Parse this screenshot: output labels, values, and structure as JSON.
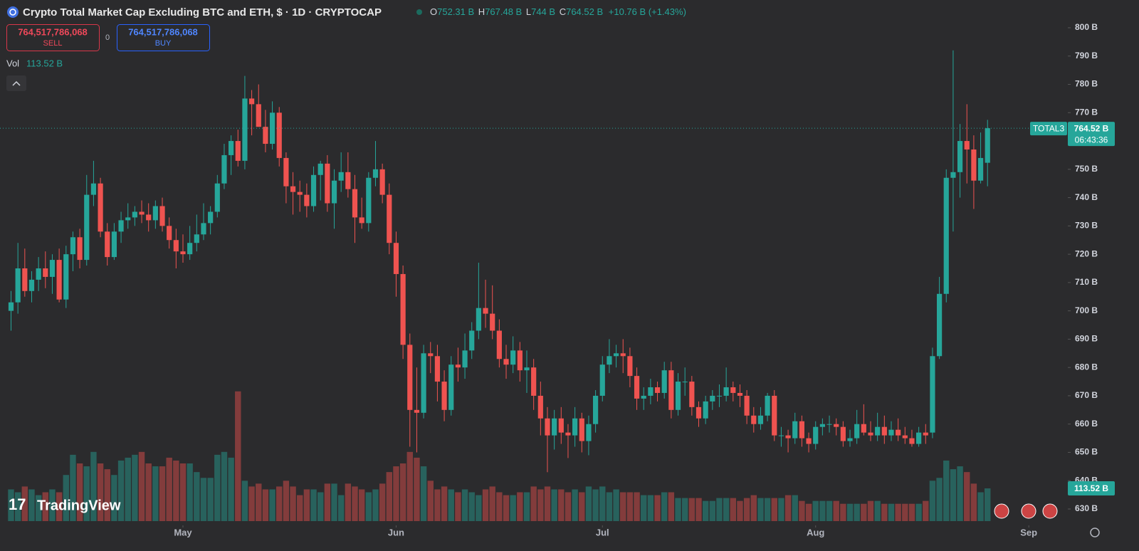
{
  "chart_data": {
    "type": "candlestick",
    "title": "Crypto Total Market Cap Excluding BTC and ETH, $ · 1D · CRYPTOCAP",
    "legend": {
      "open_key": "O",
      "open": "752.31 B",
      "high_key": "H",
      "high": "767.48 B",
      "low_key": "L",
      "low": "744 B",
      "close_key": "C",
      "close": "764.52 B",
      "change": "+10.76 B (+1.43%)"
    },
    "sell": {
      "price": "764,517,786,068",
      "label": "SELL"
    },
    "spread": "0",
    "buy": {
      "price": "764,517,786,068",
      "label": "BUY"
    },
    "volume_key": "Vol",
    "volume_label": "113.52 B",
    "symbol": "TOTAL3",
    "last_price_label": "764.52 B",
    "countdown": "06:43:36",
    "brand": "TradingView",
    "up_color": "#26a69a",
    "down_color": "#ef5350",
    "ylim": [
      630,
      800
    ],
    "yticks": [
      {
        "value": 630,
        "label": "630 B"
      },
      {
        "value": 640,
        "label": "640 B"
      },
      {
        "value": 650,
        "label": "650 B"
      },
      {
        "value": 660,
        "label": "660 B"
      },
      {
        "value": 670,
        "label": "670 B"
      },
      {
        "value": 680,
        "label": "680 B"
      },
      {
        "value": 690,
        "label": "690 B"
      },
      {
        "value": 700,
        "label": "700 B"
      },
      {
        "value": 710,
        "label": "710 B"
      },
      {
        "value": 720,
        "label": "720 B"
      },
      {
        "value": 730,
        "label": "730 B"
      },
      {
        "value": 740,
        "label": "740 B"
      },
      {
        "value": 750,
        "label": "750 B"
      },
      {
        "value": 760,
        "label": "760 B"
      },
      {
        "value": 770,
        "label": "770 B"
      },
      {
        "value": 780,
        "label": "780 B"
      },
      {
        "value": 790,
        "label": "790 B"
      },
      {
        "value": 800,
        "label": "800 B"
      }
    ],
    "xticks": [
      {
        "value": 25,
        "label": "May"
      },
      {
        "value": 56,
        "label": "Jun"
      },
      {
        "value": 86,
        "label": "Jul"
      },
      {
        "value": 117,
        "label": "Aug"
      },
      {
        "value": 148,
        "label": "Sep"
      }
    ],
    "candles": [
      [
        700,
        707,
        693,
        703
      ],
      [
        703,
        724,
        699,
        715
      ],
      [
        715,
        722,
        705,
        707
      ],
      [
        707,
        714,
        703,
        711
      ],
      [
        711,
        719,
        707,
        715
      ],
      [
        715,
        721,
        708,
        712
      ],
      [
        712,
        720,
        706,
        718
      ],
      [
        718,
        722,
        703,
        704
      ],
      [
        704,
        723,
        701,
        720
      ],
      [
        720,
        728,
        714,
        726
      ],
      [
        726,
        729,
        715,
        718
      ],
      [
        718,
        748,
        716,
        741
      ],
      [
        741,
        753,
        737,
        745
      ],
      [
        745,
        747,
        726,
        728
      ],
      [
        728,
        731,
        716,
        719
      ],
      [
        719,
        731,
        718,
        728
      ],
      [
        728,
        735,
        724,
        732
      ],
      [
        732,
        738,
        729,
        733
      ],
      [
        733,
        737,
        730,
        735
      ],
      [
        735,
        739,
        731,
        734
      ],
      [
        734,
        738,
        728,
        732
      ],
      [
        732,
        739,
        729,
        737
      ],
      [
        737,
        740,
        728,
        730
      ],
      [
        730,
        733,
        722,
        725
      ],
      [
        725,
        729,
        715,
        721
      ],
      [
        721,
        727,
        717,
        720
      ],
      [
        720,
        730,
        718,
        724
      ],
      [
        724,
        734,
        721,
        727
      ],
      [
        727,
        738,
        725,
        731
      ],
      [
        731,
        737,
        727,
        735
      ],
      [
        735,
        748,
        733,
        745
      ],
      [
        745,
        759,
        743,
        755
      ],
      [
        755,
        762,
        748,
        760
      ],
      [
        760,
        764,
        751,
        753
      ],
      [
        753,
        783,
        750,
        775
      ],
      [
        775,
        778,
        762,
        773
      ],
      [
        773,
        780,
        765,
        765
      ],
      [
        765,
        771,
        756,
        759
      ],
      [
        759,
        774,
        757,
        770
      ],
      [
        770,
        772,
        751,
        754
      ],
      [
        754,
        756,
        738,
        744
      ],
      [
        744,
        749,
        734,
        742
      ],
      [
        742,
        746,
        735,
        741
      ],
      [
        741,
        745,
        733,
        737
      ],
      [
        737,
        751,
        735,
        748
      ],
      [
        748,
        753,
        739,
        752
      ],
      [
        752,
        755,
        735,
        738
      ],
      [
        738,
        750,
        729,
        746
      ],
      [
        746,
        756,
        742,
        749
      ],
      [
        749,
        756,
        740,
        743
      ],
      [
        743,
        748,
        724,
        733
      ],
      [
        733,
        740,
        729,
        731
      ],
      [
        731,
        749,
        728,
        747
      ],
      [
        747,
        760,
        744,
        750
      ],
      [
        750,
        752,
        738,
        741
      ],
      [
        741,
        745,
        720,
        724
      ],
      [
        724,
        728,
        705,
        713
      ],
      [
        713,
        716,
        683,
        688
      ],
      [
        688,
        692,
        652,
        665
      ],
      [
        665,
        680,
        650,
        664
      ],
      [
        664,
        688,
        662,
        685
      ],
      [
        685,
        689,
        678,
        684
      ],
      [
        684,
        688,
        668,
        675
      ],
      [
        675,
        679,
        661,
        665
      ],
      [
        665,
        684,
        663,
        681
      ],
      [
        681,
        687,
        675,
        680
      ],
      [
        680,
        692,
        676,
        686
      ],
      [
        686,
        696,
        683,
        693
      ],
      [
        693,
        717,
        690,
        701
      ],
      [
        701,
        711,
        694,
        699
      ],
      [
        699,
        709,
        690,
        693
      ],
      [
        693,
        697,
        680,
        683
      ],
      [
        683,
        688,
        676,
        681
      ],
      [
        681,
        691,
        678,
        686
      ],
      [
        686,
        689,
        675,
        679
      ],
      [
        679,
        686,
        671,
        680
      ],
      [
        680,
        683,
        665,
        670
      ],
      [
        670,
        675,
        656,
        662
      ],
      [
        662,
        666,
        643,
        656
      ],
      [
        656,
        665,
        651,
        662
      ],
      [
        662,
        666,
        653,
        657
      ],
      [
        657,
        660,
        648,
        656
      ],
      [
        656,
        666,
        652,
        662
      ],
      [
        662,
        664,
        650,
        654
      ],
      [
        654,
        663,
        649,
        660
      ],
      [
        660,
        672,
        657,
        670
      ],
      [
        670,
        684,
        668,
        681
      ],
      [
        681,
        690,
        678,
        684
      ],
      [
        684,
        688,
        680,
        685
      ],
      [
        685,
        690,
        678,
        684
      ],
      [
        684,
        687,
        673,
        677
      ],
      [
        677,
        680,
        665,
        669
      ],
      [
        669,
        673,
        665,
        670
      ],
      [
        670,
        676,
        667,
        673
      ],
      [
        673,
        675,
        668,
        671
      ],
      [
        671,
        682,
        669,
        679
      ],
      [
        679,
        682,
        662,
        665
      ],
      [
        665,
        678,
        663,
        675
      ],
      [
        675,
        680,
        670,
        675
      ],
      [
        675,
        677,
        663,
        666
      ],
      [
        666,
        668,
        659,
        662
      ],
      [
        662,
        670,
        660,
        668
      ],
      [
        668,
        672,
        665,
        670
      ],
      [
        670,
        674,
        666,
        670
      ],
      [
        670,
        680,
        668,
        673
      ],
      [
        673,
        675,
        668,
        671
      ],
      [
        671,
        674,
        666,
        670
      ],
      [
        670,
        672,
        660,
        663
      ],
      [
        663,
        666,
        657,
        660
      ],
      [
        660,
        666,
        658,
        663
      ],
      [
        663,
        671,
        661,
        670
      ],
      [
        670,
        672,
        654,
        656
      ],
      [
        656,
        659,
        652,
        656
      ],
      [
        656,
        658,
        650,
        655
      ],
      [
        655,
        664,
        653,
        661
      ],
      [
        661,
        663,
        652,
        655
      ],
      [
        655,
        657,
        650,
        653
      ],
      [
        653,
        661,
        651,
        659
      ],
      [
        659,
        662,
        656,
        660
      ],
      [
        660,
        663,
        657,
        660
      ],
      [
        660,
        662,
        656,
        659
      ],
      [
        659,
        661,
        652,
        654
      ],
      [
        654,
        658,
        652,
        655
      ],
      [
        655,
        665,
        653,
        660
      ],
      [
        660,
        667,
        656,
        657
      ],
      [
        657,
        661,
        654,
        656
      ],
      [
        656,
        664,
        654,
        659
      ],
      [
        659,
        663,
        653,
        656
      ],
      [
        656,
        661,
        654,
        658
      ],
      [
        658,
        662,
        654,
        656
      ],
      [
        656,
        659,
        653,
        655
      ],
      [
        655,
        658,
        652,
        653
      ],
      [
        653,
        659,
        652,
        657
      ],
      [
        657,
        660,
        653,
        656
      ],
      [
        657,
        687,
        655,
        684
      ],
      [
        684,
        712,
        683,
        706
      ],
      [
        706,
        750,
        703,
        747
      ],
      [
        747,
        792,
        728,
        749
      ],
      [
        749,
        766,
        740,
        760
      ],
      [
        760,
        773,
        745,
        757
      ],
      [
        757,
        762,
        736,
        746
      ],
      [
        746,
        763,
        745,
        754
      ],
      [
        752.31,
        767.48,
        744,
        764.52
      ]
    ],
    "volume": [
      110,
      100,
      120,
      110,
      90,
      100,
      110,
      100,
      160,
      230,
      200,
      190,
      240,
      200,
      180,
      160,
      210,
      220,
      230,
      240,
      200,
      190,
      190,
      220,
      210,
      200,
      200,
      170,
      150,
      150,
      230,
      240,
      220,
      450,
      140,
      120,
      130,
      110,
      110,
      120,
      140,
      120,
      90,
      110,
      110,
      100,
      130,
      130,
      90,
      130,
      120,
      110,
      100,
      110,
      130,
      170,
      190,
      200,
      240,
      220,
      190,
      140,
      110,
      120,
      110,
      100,
      110,
      100,
      90,
      110,
      120,
      100,
      90,
      90,
      100,
      100,
      120,
      110,
      120,
      110,
      110,
      100,
      110,
      100,
      120,
      110,
      120,
      100,
      110,
      100,
      100,
      100,
      90,
      90,
      90,
      100,
      100,
      80,
      80,
      80,
      80,
      70,
      70,
      80,
      80,
      80,
      70,
      80,
      90,
      80,
      80,
      80,
      80,
      90,
      90,
      70,
      60,
      70,
      70,
      70,
      70,
      60,
      60,
      60,
      60,
      70,
      70,
      60,
      60,
      60,
      60,
      60,
      60,
      70,
      140,
      150,
      210,
      180,
      190,
      170,
      130,
      100,
      113.52
    ]
  }
}
